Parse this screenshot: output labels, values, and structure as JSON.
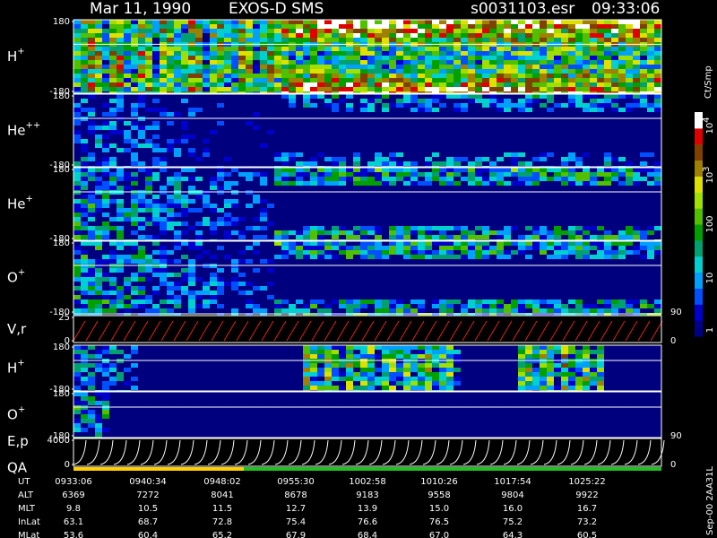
{
  "header": {
    "date": "Mar 11, 1990",
    "mission": "EXOS-D SMS",
    "file": "s0031103.esr",
    "time": "09:33:06"
  },
  "chart_data": [
    {
      "type": "spectrogram",
      "species": "H",
      "charge": "+",
      "yticks": [
        180,
        -180
      ]
    },
    {
      "type": "spectrogram",
      "species": "He",
      "charge": "++",
      "yticks": [
        180,
        -180
      ]
    },
    {
      "type": "spectrogram",
      "species": "He",
      "charge": "+",
      "yticks": [
        180,
        -180
      ]
    },
    {
      "type": "spectrogram",
      "species": "O",
      "charge": "+",
      "yticks": [
        180,
        -180
      ],
      "right_ticks": [
        90
      ]
    },
    {
      "type": "sawtooth",
      "species": "V,r",
      "yticks": [
        25,
        0
      ],
      "right_ticks": [
        0
      ]
    },
    {
      "type": "spectrogram",
      "species": "H",
      "charge": "+",
      "yticks": [
        180,
        -180
      ]
    },
    {
      "type": "spectrogram",
      "species": "O",
      "charge": "+",
      "yticks": [
        180,
        -180
      ],
      "right_ticks": [
        90
      ]
    },
    {
      "type": "curves",
      "species": "E,p",
      "species2": "QA",
      "yticks": [
        4000,
        0
      ],
      "right_ticks": [
        0
      ]
    }
  ],
  "colorbar": {
    "unit": "Ct/Smp",
    "ticks": [
      {
        "base": "10",
        "exp": "4"
      },
      {
        "base": "10",
        "exp": "3"
      },
      {
        "base": "100"
      },
      {
        "base": "10"
      },
      {
        "base": "1"
      }
    ]
  },
  "footer": {
    "stamp": "Sep-00  2AA31L",
    "rows": [
      {
        "label": "UT",
        "values": [
          "0933:06",
          "0940:34",
          "0948:02",
          "0955:30",
          "1002:58",
          "1010:26",
          "1017:54",
          "1025:22"
        ]
      },
      {
        "label": "ALT",
        "values": [
          "6369",
          "7272",
          "8041",
          "8678",
          "9183",
          "9558",
          "9804",
          "9922"
        ]
      },
      {
        "label": "MLT",
        "values": [
          "9.8",
          "10.5",
          "11.5",
          "12.7",
          "13.9",
          "15.0",
          "16.0",
          "16.7"
        ]
      },
      {
        "label": "InLat",
        "values": [
          "63.1",
          "68.7",
          "72.8",
          "75.4",
          "76.6",
          "76.5",
          "75.2",
          "73.2"
        ]
      },
      {
        "label": "MLat",
        "values": [
          "53.6",
          "60.4",
          "65.2",
          "67.9",
          "68.4",
          "67.0",
          "64.3",
          "60.5"
        ]
      }
    ]
  }
}
